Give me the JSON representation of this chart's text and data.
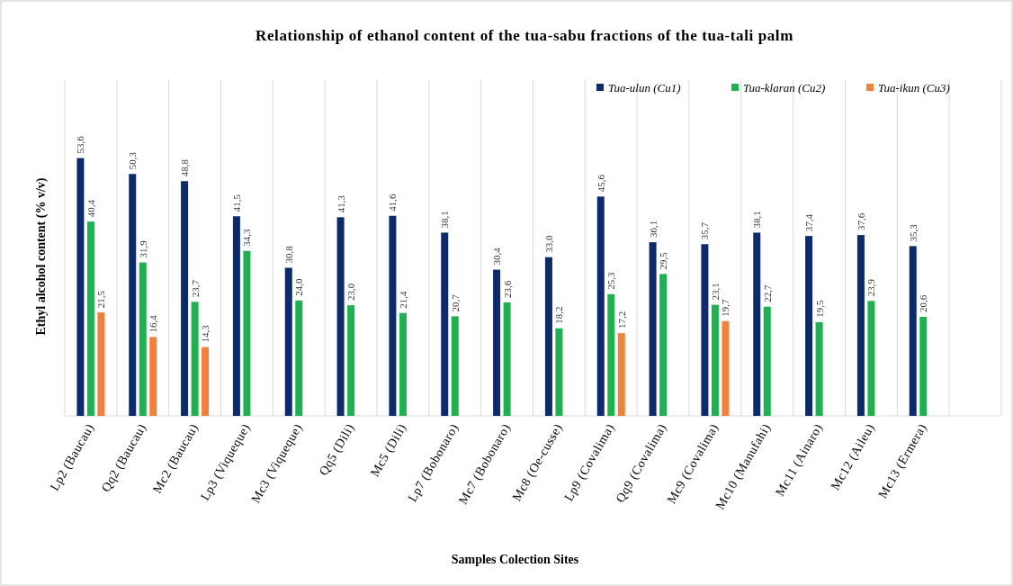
{
  "chart_data": {
    "type": "bar",
    "title": "Relationship of ethanol content of the tua-sabu fractions of the tua-tali palm",
    "xlabel": "Samples Colection Sites",
    "ylabel": "Ethyl alcohol content (% v/v)",
    "categories": [
      "Lp2 (Baucau)",
      "Qq2 (Baucau)",
      "Mc2 (Baucau)",
      "Lp3 (Viqueque)",
      "Mc3 (Viqueque)",
      "Qq5 (Dili)",
      "Mc5 (Dili)",
      "Lp7 (Bobonaro)",
      "Mc7 (Bobonaro)",
      "Mc8 (Oe-cusse)",
      "Lp9 (Covalima)",
      "Qq9 (Covalima)",
      "Mc9 (Covalima)",
      "Mc10 (Manufahi)",
      "Mc11 (Ainaro)",
      "Mc12 (Aileu)",
      "Mc13 (Ermera)",
      null
    ],
    "series": [
      {
        "name": "Tua-ulun (Cu1)",
        "color": "#0d2a6b",
        "values": [
          53.6,
          50.3,
          48.8,
          41.5,
          30.8,
          41.3,
          41.6,
          38.1,
          30.4,
          33.0,
          45.6,
          36.1,
          35.7,
          38.1,
          37.4,
          37.6,
          35.3,
          null
        ],
        "value_labels": [
          "53,6",
          "50,3",
          "48,8",
          "41,5",
          "30,8",
          "41,3",
          "41,6",
          "38,1",
          "30,4",
          "33,0",
          "45,6",
          "36,1",
          "35,7",
          "38,1",
          "37,4",
          "37,6",
          "35,3",
          null
        ]
      },
      {
        "name": "Tua-klaran (Cu2)",
        "color": "#1fb050",
        "values": [
          40.4,
          31.9,
          23.7,
          34.3,
          24.0,
          23.0,
          21.4,
          20.7,
          23.6,
          18.2,
          25.3,
          29.5,
          23.1,
          22.7,
          19.5,
          23.9,
          20.6,
          null
        ],
        "value_labels": [
          "40,4",
          "31,9",
          "23,7",
          "34,3",
          "24,0",
          "23,0",
          "21,4",
          "20,7",
          "23,6",
          "18,2",
          "25,3",
          "29,5",
          "23,1",
          "22,7",
          "19,5",
          "23,9",
          "20,6",
          null
        ]
      },
      {
        "name": "Tua-ikun (Cu3)",
        "color": "#f0813a",
        "values": [
          21.5,
          16.4,
          14.3,
          null,
          null,
          null,
          null,
          null,
          null,
          null,
          17.2,
          null,
          19.7,
          null,
          null,
          null,
          null,
          null
        ],
        "value_labels": [
          "21,5",
          "16,4",
          "14,3",
          null,
          null,
          null,
          null,
          null,
          null,
          null,
          "17,2",
          null,
          "19,7",
          null,
          null,
          null,
          null,
          null
        ]
      }
    ],
    "ylim": [
      0,
      70
    ],
    "tick_labels": "x",
    "grid": "x",
    "legend": "top right"
  }
}
